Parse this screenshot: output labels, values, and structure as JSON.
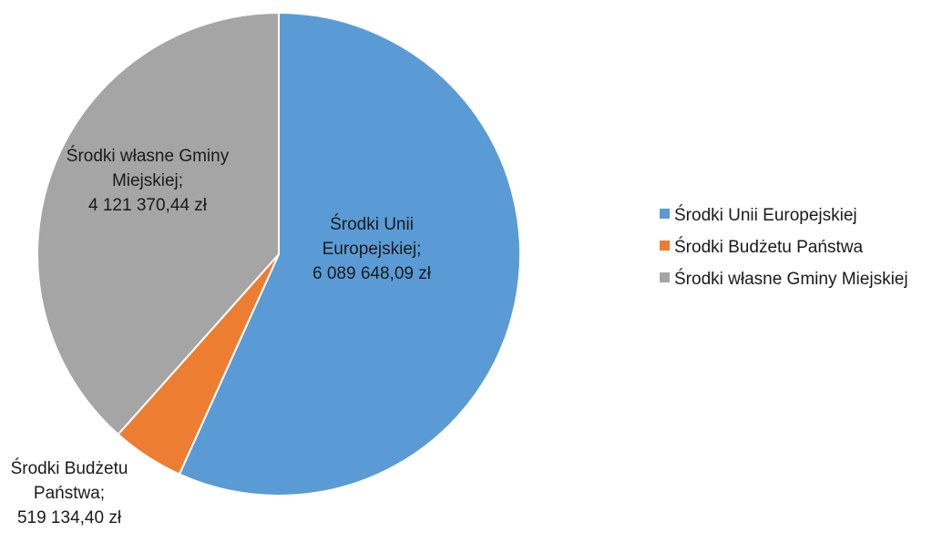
{
  "chart_data": {
    "type": "pie",
    "title": "",
    "slices": [
      {
        "name": "Środki Unii Europejskiej",
        "value": 6089648.09,
        "color": "#5B9BD5",
        "label_lines": [
          "Środki Unii",
          "Europejskiej;",
          "6 089 648,09 zł"
        ]
      },
      {
        "name": "Środki Budżetu Państwa",
        "value": 519134.4,
        "color": "#ED7D31",
        "label_lines": [
          "Środki Budżetu",
          "Państwa;",
          "519 134,40 zł"
        ]
      },
      {
        "name": "Środki własne Gminy Miejskiej",
        "value": 4121370.44,
        "color": "#A5A5A5",
        "label_lines": [
          "Środki własne Gminy",
          "Miejskiej;",
          "4 121 370,44 zł"
        ]
      }
    ],
    "legend_position": "right",
    "start_angle": "12 o'clock",
    "direction": "clockwise"
  }
}
